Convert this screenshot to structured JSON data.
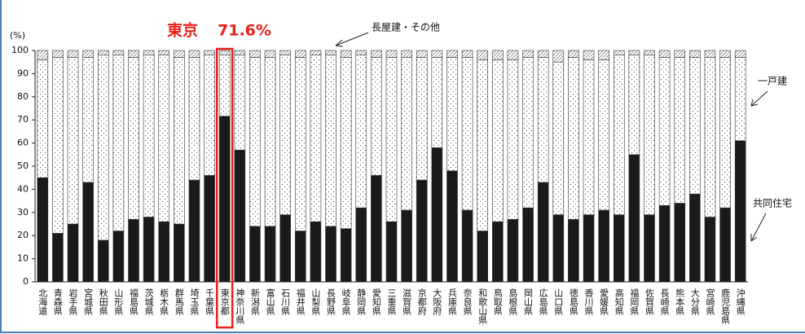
{
  "chart_data": {
    "type": "stacked_bar",
    "y_label": "(%)",
    "categories": [
      "北海道",
      "青森県",
      "岩手県",
      "宮城県",
      "秋田県",
      "山形県",
      "福島県",
      "茨城県",
      "栃木県",
      "群馬県",
      "埼玉県",
      "千葉県",
      "東京都",
      "神奈川県",
      "新潟県",
      "富山県",
      "石川県",
      "福井県",
      "山梨県",
      "長野県",
      "岐阜県",
      "静岡県",
      "愛知県",
      "三重県",
      "滋賀県",
      "京都府",
      "大阪府",
      "兵庫県",
      "奈良県",
      "和歌山県",
      "鳥取県",
      "島根県",
      "岡山県",
      "広島県",
      "山口県",
      "徳島県",
      "香川県",
      "愛媛県",
      "高知県",
      "福岡県",
      "佐賀県",
      "長崎県",
      "熊本県",
      "大分県",
      "宮崎県",
      "鹿児島県",
      "沖縄県"
    ],
    "series": [
      {
        "name": "共同住宅",
        "color": "#1a1a1a",
        "pattern": "solid",
        "values": [
          45,
          21,
          25,
          43,
          18,
          22,
          27,
          28,
          26,
          25,
          44,
          46,
          71.6,
          57,
          24,
          24,
          29,
          22,
          26,
          24,
          23,
          32,
          46,
          26,
          31,
          44,
          58,
          48,
          31,
          22,
          26,
          27,
          32,
          43,
          29,
          27,
          29,
          31,
          29,
          55,
          29,
          33,
          34,
          38,
          28,
          32,
          61
        ],
        "value_labels": [
          null,
          null,
          null,
          null,
          null,
          null,
          null,
          null,
          null,
          null,
          null,
          null,
          "71.6%",
          null,
          null,
          null,
          null,
          null,
          null,
          null,
          null,
          null,
          null,
          null,
          null,
          null,
          null,
          null,
          null,
          null,
          null,
          null,
          null,
          null,
          null,
          null,
          null,
          null,
          null,
          null,
          null,
          null,
          null,
          null,
          null,
          null,
          null
        ]
      },
      {
        "name": "一戸建",
        "color": "#ffffff",
        "pattern": "dots",
        "values": [
          51,
          76,
          72,
          54,
          80,
          76,
          70,
          70,
          72,
          72,
          53,
          52,
          26.4,
          41,
          73,
          73,
          69,
          75,
          72,
          74,
          74,
          66,
          51,
          71,
          66,
          53,
          39,
          49,
          66,
          74,
          70,
          69,
          65,
          54,
          66,
          70,
          67,
          65,
          69,
          43,
          69,
          64,
          63,
          59,
          69,
          65,
          36
        ]
      },
      {
        "name": "長屋建・その他",
        "color": "#ffffff",
        "pattern": "hatch",
        "values": [
          4,
          3,
          3,
          3,
          2,
          2,
          3,
          2,
          2,
          3,
          3,
          2,
          2,
          2,
          3,
          3,
          2,
          3,
          2,
          2,
          3,
          2,
          3,
          3,
          3,
          3,
          3,
          3,
          3,
          4,
          4,
          4,
          3,
          3,
          5,
          3,
          4,
          4,
          2,
          2,
          2,
          3,
          3,
          3,
          3,
          3,
          3
        ]
      }
    ],
    "annotation": "東京",
    "highlight": "東京都",
    "highlight_color": "#e8201c",
    "ylim": [
      0,
      100
    ],
    "yticks": [
      0,
      10,
      20,
      30,
      40,
      50,
      60,
      70,
      80,
      90,
      100
    ]
  }
}
